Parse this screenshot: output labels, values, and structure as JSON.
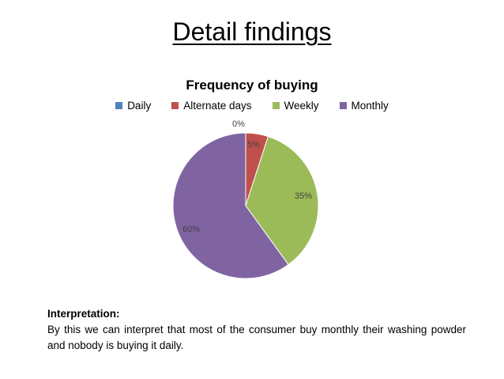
{
  "slide": {
    "title": "Detail findings"
  },
  "chart_data": {
    "type": "pie",
    "title": "Frequency of buying",
    "categories": [
      "Daily",
      "Alternate days",
      "Weekly",
      "Monthly"
    ],
    "values": [
      0,
      5,
      35,
      60
    ],
    "labels": [
      "0%",
      "5%",
      "35%",
      "60%"
    ],
    "colors": [
      "#4f81bd",
      "#c0504d",
      "#9bbb59",
      "#8064a2"
    ],
    "legend_position": "top"
  },
  "interpretation": {
    "heading": "Interpretation:",
    "text": "By this we can interpret that most of the consumer buy monthly their washing powder and nobody is buying it daily."
  }
}
